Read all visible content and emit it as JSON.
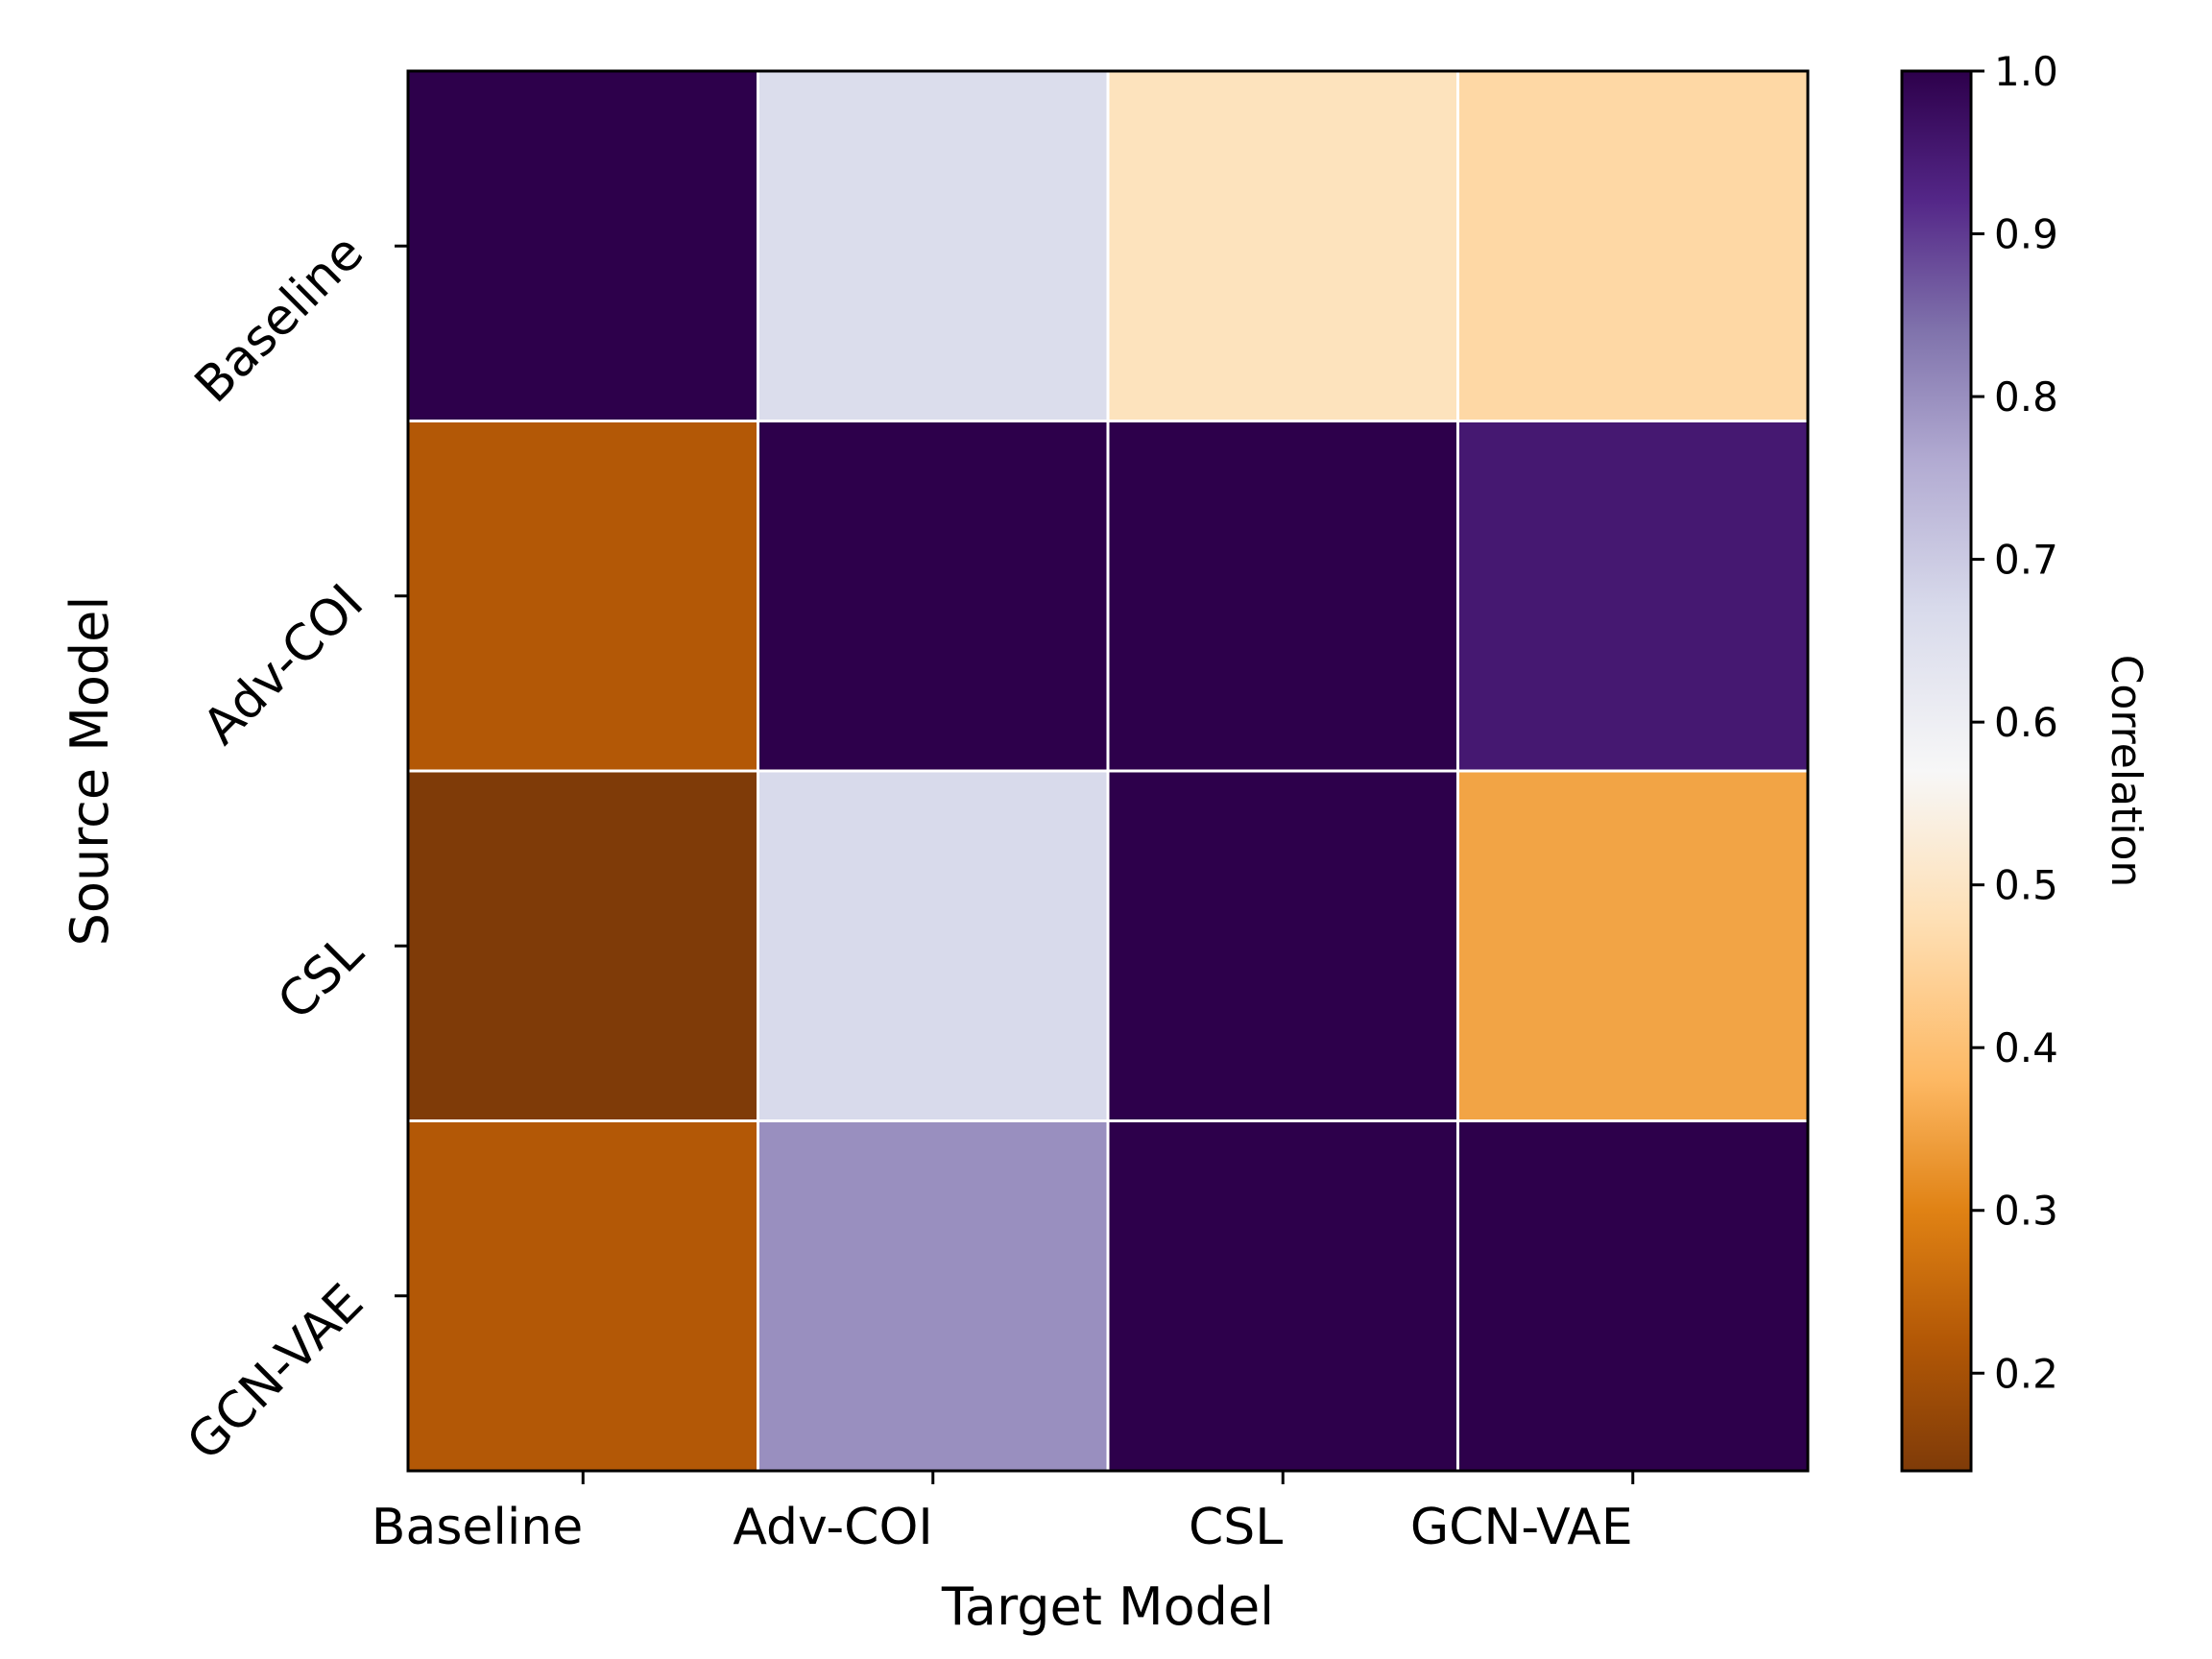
{
  "chart_data": {
    "type": "heatmap",
    "title": "",
    "xlabel": "Target Model",
    "ylabel": "Source Model",
    "x_categories": [
      "Baseline",
      "Adv-COI",
      "CSL",
      "GCN-VAE"
    ],
    "y_categories": [
      "Baseline",
      "Adv-COI",
      "CSL",
      "GCN-VAE"
    ],
    "values": [
      [
        1.0,
        0.66,
        0.49,
        0.46
      ],
      [
        0.22,
        1.0,
        1.0,
        0.95
      ],
      [
        0.14,
        0.67,
        1.0,
        0.35
      ],
      [
        0.22,
        0.8,
        1.0,
        1.0
      ]
    ],
    "colorbar": {
      "label": "Correlation",
      "range": [
        0.14,
        1.0
      ],
      "ticks": [
        "0.2",
        "0.3",
        "0.4",
        "0.5",
        "0.6",
        "0.7",
        "0.8",
        "0.9",
        "1.0"
      ],
      "colormap": "PuOr",
      "colormap_stops": [
        {
          "v": 0.14,
          "color": "#7f3b08"
        },
        {
          "v": 0.22,
          "color": "#b35806"
        },
        {
          "v": 0.3,
          "color": "#e08214"
        },
        {
          "v": 0.38,
          "color": "#fdb863"
        },
        {
          "v": 0.48,
          "color": "#fee0b6"
        },
        {
          "v": 0.57,
          "color": "#f7f7f7"
        },
        {
          "v": 0.67,
          "color": "#d8daeb"
        },
        {
          "v": 0.76,
          "color": "#b2abd2"
        },
        {
          "v": 0.84,
          "color": "#8073ac"
        },
        {
          "v": 0.92,
          "color": "#542788"
        },
        {
          "v": 1.0,
          "color": "#2d004b"
        }
      ]
    },
    "grid": false,
    "cell_border_color": "#ffffff"
  }
}
